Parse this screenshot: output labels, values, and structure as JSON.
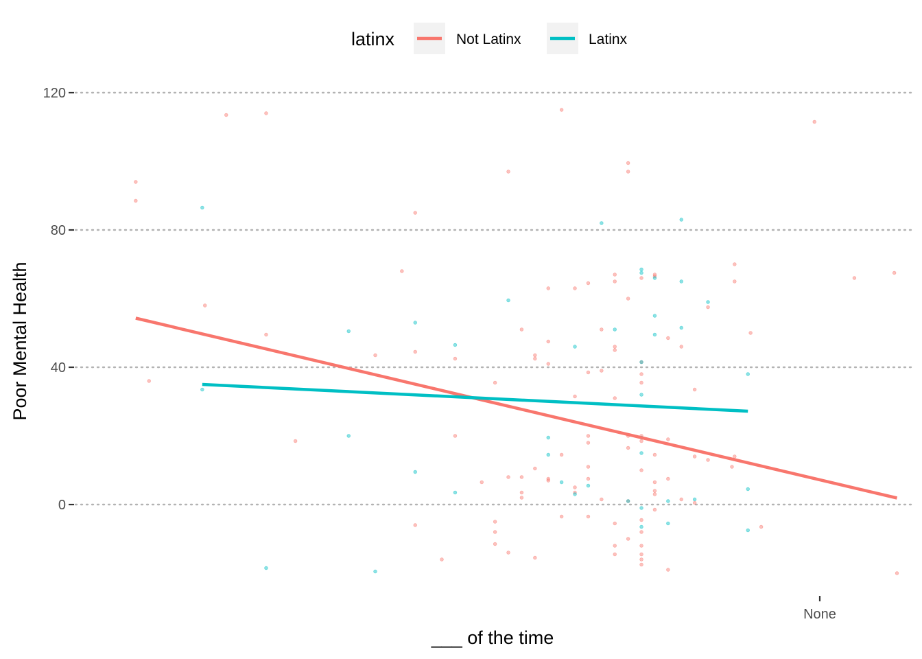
{
  "chart_data": {
    "type": "scatter",
    "title": "",
    "xlabel": "___ of the time",
    "ylabel": "Poor Mental Health",
    "x_tick_labels": [
      {
        "x": 27.5,
        "label": "None"
      }
    ],
    "y_ticks": [
      0,
      40,
      80,
      120
    ],
    "ylim": [
      -26,
      134
    ],
    "xlim": [
      -0.3,
      29.5
    ],
    "grid": "horizontal dotted",
    "legend": {
      "title": "latinx",
      "position": "top",
      "entries": [
        "Not Latinx",
        "Latinx"
      ]
    },
    "series": [
      {
        "name": "Not Latinx",
        "color": "#F8766D",
        "fit_line": [
          [
            1.8,
            54.3
          ],
          [
            30.4,
            1.9
          ]
        ],
        "points": [
          [
            1.8,
            94
          ],
          [
            1.8,
            88.5
          ],
          [
            2.3,
            36
          ],
          [
            5.2,
            113.5
          ],
          [
            4.4,
            58
          ],
          [
            6.7,
            114
          ],
          [
            6.7,
            49.5
          ],
          [
            7.8,
            18.5
          ],
          [
            10.8,
            43.5
          ],
          [
            11.8,
            68
          ],
          [
            12.3,
            85
          ],
          [
            12.3,
            44.5
          ],
          [
            12.3,
            -6
          ],
          [
            13.3,
            -16
          ],
          [
            13.8,
            42.5
          ],
          [
            13.8,
            20
          ],
          [
            14.8,
            6.5
          ],
          [
            15.3,
            -5
          ],
          [
            15.3,
            35.5
          ],
          [
            15.3,
            -8
          ],
          [
            15.3,
            -11.5
          ],
          [
            15.8,
            97
          ],
          [
            15.8,
            8
          ],
          [
            15.8,
            -14
          ],
          [
            16.3,
            51
          ],
          [
            16.3,
            8
          ],
          [
            16.3,
            3.5
          ],
          [
            16.3,
            2
          ],
          [
            16.8,
            43.5
          ],
          [
            16.8,
            42.5
          ],
          [
            16.8,
            10.5
          ],
          [
            16.8,
            -15.5
          ],
          [
            17.3,
            47.5
          ],
          [
            17.3,
            41
          ],
          [
            17.3,
            63
          ],
          [
            17.3,
            7.5
          ],
          [
            17.3,
            7
          ],
          [
            17.8,
            115
          ],
          [
            17.8,
            14.5
          ],
          [
            17.8,
            -3.5
          ],
          [
            18.3,
            63
          ],
          [
            18.3,
            31.5
          ],
          [
            18.3,
            5
          ],
          [
            18.3,
            3.5
          ],
          [
            18.8,
            64.5
          ],
          [
            18.8,
            38.5
          ],
          [
            18.8,
            20
          ],
          [
            18.8,
            18
          ],
          [
            18.8,
            11
          ],
          [
            18.8,
            7.5
          ],
          [
            18.8,
            -3.5
          ],
          [
            19.3,
            51
          ],
          [
            19.3,
            39
          ],
          [
            19.3,
            1.5
          ],
          [
            19.8,
            67
          ],
          [
            19.8,
            65
          ],
          [
            19.8,
            46
          ],
          [
            19.8,
            45
          ],
          [
            19.8,
            31
          ],
          [
            19.8,
            -5.5
          ],
          [
            19.8,
            -12
          ],
          [
            19.8,
            -14.5
          ],
          [
            20.3,
            99.5
          ],
          [
            20.3,
            97
          ],
          [
            20.3,
            60
          ],
          [
            20.3,
            20
          ],
          [
            20.3,
            16.5
          ],
          [
            20.3,
            1
          ],
          [
            20.3,
            -10
          ],
          [
            20.8,
            66
          ],
          [
            20.8,
            41.5
          ],
          [
            20.8,
            38
          ],
          [
            20.8,
            35.5
          ],
          [
            20.8,
            20
          ],
          [
            20.8,
            18.5
          ],
          [
            20.8,
            10
          ],
          [
            20.8,
            -4.5
          ],
          [
            20.8,
            -8
          ],
          [
            20.8,
            -12
          ],
          [
            20.8,
            -14.5
          ],
          [
            20.8,
            -16
          ],
          [
            20.8,
            -17.5
          ],
          [
            21.3,
            67
          ],
          [
            21.3,
            66.5
          ],
          [
            21.3,
            14.5
          ],
          [
            21.3,
            6.5
          ],
          [
            21.3,
            4
          ],
          [
            21.3,
            3
          ],
          [
            21.3,
            -1.5
          ],
          [
            21.8,
            48.5
          ],
          [
            21.8,
            19
          ],
          [
            21.8,
            7.5
          ],
          [
            21.8,
            -19
          ],
          [
            22.3,
            46
          ],
          [
            22.3,
            1.5
          ],
          [
            22.8,
            33.5
          ],
          [
            22.8,
            14
          ],
          [
            22.8,
            0.5
          ],
          [
            23.3,
            57.5
          ],
          [
            23.3,
            13
          ],
          [
            24.3,
            70
          ],
          [
            24.3,
            65
          ],
          [
            24.3,
            14
          ],
          [
            24.2,
            11
          ],
          [
            24.9,
            50
          ],
          [
            25.3,
            -6.5
          ],
          [
            27.3,
            111.5
          ],
          [
            28.8,
            66
          ],
          [
            30.3,
            67.5
          ],
          [
            30.4,
            -20
          ]
        ]
      },
      {
        "name": "Latinx",
        "color": "#00BFC4",
        "fit_line": [
          [
            4.3,
            35.0
          ],
          [
            24.8,
            27.2
          ]
        ],
        "points": [
          [
            4.3,
            86.5
          ],
          [
            4.3,
            33.5
          ],
          [
            6.7,
            -18.5
          ],
          [
            9.8,
            50.5
          ],
          [
            9.8,
            20
          ],
          [
            10.8,
            -19.5
          ],
          [
            12.3,
            53
          ],
          [
            12.3,
            9.5
          ],
          [
            13.8,
            46.5
          ],
          [
            13.8,
            3.5
          ],
          [
            15.8,
            59.5
          ],
          [
            17.3,
            19.5
          ],
          [
            17.3,
            14.5
          ],
          [
            17.8,
            6.5
          ],
          [
            18.3,
            46
          ],
          [
            18.3,
            3
          ],
          [
            18.8,
            5.5
          ],
          [
            19.3,
            82
          ],
          [
            19.8,
            51
          ],
          [
            20.3,
            1
          ],
          [
            20.8,
            68.5
          ],
          [
            20.8,
            67.5
          ],
          [
            20.8,
            41.5
          ],
          [
            20.8,
            32
          ],
          [
            20.8,
            19.5
          ],
          [
            20.8,
            15
          ],
          [
            20.8,
            -1
          ],
          [
            20.8,
            -6.5
          ],
          [
            21.3,
            66
          ],
          [
            21.3,
            55
          ],
          [
            21.3,
            49.5
          ],
          [
            21.8,
            1
          ],
          [
            21.8,
            -5.5
          ],
          [
            22.3,
            83
          ],
          [
            22.3,
            65
          ],
          [
            22.3,
            51.5
          ],
          [
            22.8,
            1.5
          ],
          [
            23.3,
            59
          ],
          [
            24.8,
            38
          ],
          [
            24.8,
            4.5
          ],
          [
            24.8,
            -7.5
          ]
        ]
      }
    ]
  }
}
